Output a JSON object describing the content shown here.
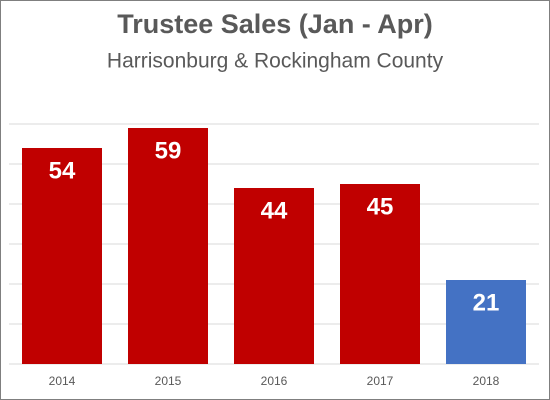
{
  "chart_data": {
    "type": "bar",
    "title": "Trustee Sales (Jan - Apr)",
    "subtitle": "Harrisonburg & Rockingham County",
    "categories": [
      "2014",
      "2015",
      "2016",
      "2017",
      "2018"
    ],
    "values": [
      54,
      59,
      44,
      45,
      21
    ],
    "colors": [
      "#c00000",
      "#c00000",
      "#c00000",
      "#c00000",
      "#4472c4"
    ],
    "ylim": [
      0,
      65
    ],
    "yticks": [
      0,
      10,
      20,
      30,
      40,
      50,
      60
    ],
    "grid": true
  }
}
